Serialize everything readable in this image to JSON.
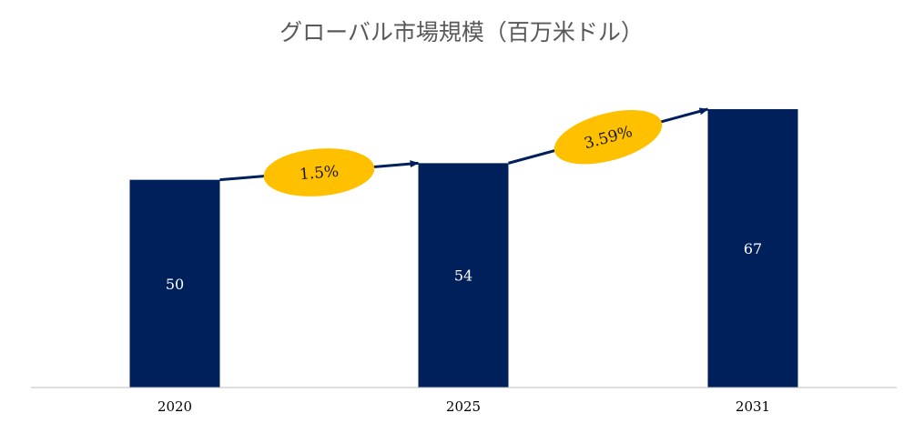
{
  "chart_data": {
    "type": "bar",
    "title": "グローバル市場規模（百万米ドル）",
    "xlabel": "",
    "ylabel": "",
    "categories": [
      "2020",
      "2025",
      "2031"
    ],
    "values": [
      50,
      54,
      67
    ],
    "ylim": [
      0,
      70
    ],
    "grid": false,
    "legend": "none",
    "growth_annotations": [
      {
        "from": "2020",
        "to": "2025",
        "label": "1.5%"
      },
      {
        "from": "2025",
        "to": "2031",
        "label": "3.59%"
      }
    ],
    "colors": {
      "bar": "#00205b",
      "arrow": "#00205b",
      "bubble": "#ffc000",
      "axis": "#bfbfbf"
    }
  }
}
